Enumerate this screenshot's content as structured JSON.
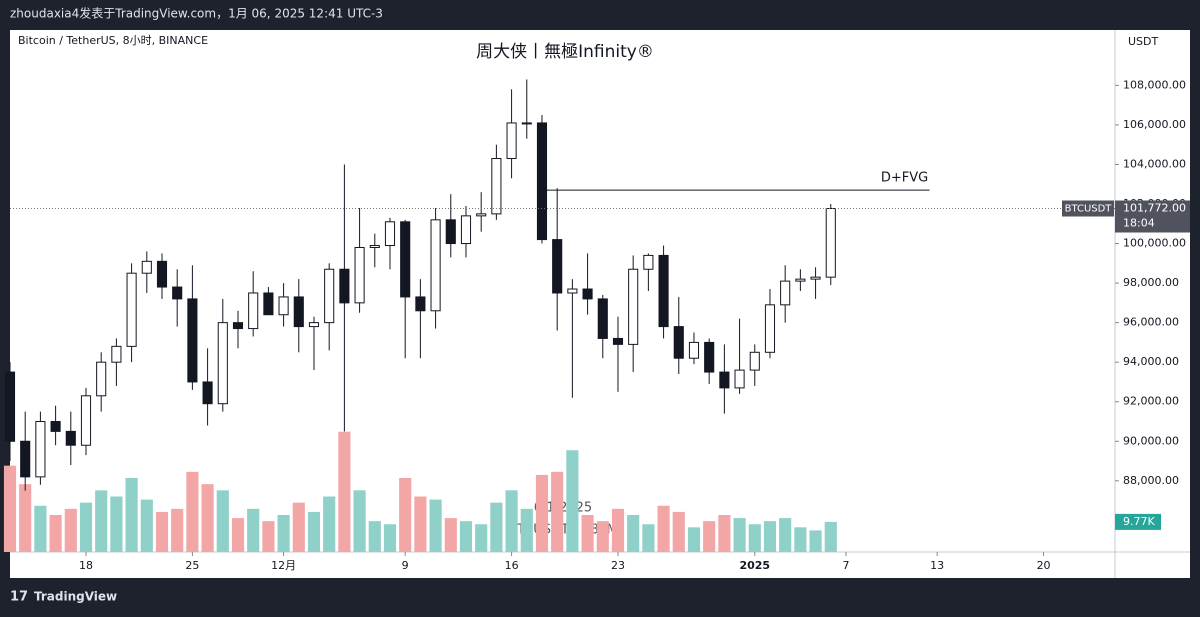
{
  "header": {
    "author_line": "zhoudaxia4发表于TradingView.com，1月 06, 2025 12:41 UTC-3",
    "footer": "TradingView"
  },
  "chart_data": {
    "type": "candlestick",
    "symbol_line": "Bitcoin / TetherUS, 8小时, BINANCE",
    "title": "周大侠丨無極Infinity®",
    "currency": "USDT",
    "watermark_date": "6/1/2025",
    "watermark_symbol": "BTCUSDT丨480M",
    "annotation": {
      "text": "D+FVG",
      "value": 102700,
      "from": 35,
      "to": 60.5
    },
    "last_symbol": "BTCUSDT",
    "close_label": "101,772.00",
    "countdown": "18:04",
    "volume_label": "9.77K",
    "up_color": "#ffffff",
    "down_color": "#131722",
    "volume_up_color": "#8fd0c8",
    "volume_down_color": "#f3a6a6",
    "open": [
      93500,
      90000,
      88200,
      91000,
      90500,
      89800,
      92300,
      94000,
      94800,
      98500,
      99100,
      97800,
      97200,
      93000,
      91900,
      96000,
      95700,
      97500,
      96400,
      97300,
      95800,
      96000,
      98700,
      97000,
      99800,
      99900,
      101100,
      97300,
      96600,
      101200,
      100000,
      101400,
      101500,
      104300,
      106100,
      106100,
      100200,
      97500,
      97700,
      97200,
      95200,
      94900,
      98700,
      99400,
      95800,
      94200,
      95000,
      93500,
      92700,
      93600,
      94500,
      96900,
      98100,
      98200,
      98300
    ],
    "high": [
      94000,
      91500,
      91500,
      91800,
      91500,
      92700,
      94500,
      95200,
      99000,
      99600,
      99500,
      98700,
      98900,
      94700,
      97200,
      96600,
      98600,
      97800,
      98000,
      98200,
      96300,
      99000,
      104000,
      101800,
      100500,
      101300,
      101200,
      98200,
      101800,
      102500,
      101900,
      102600,
      105000,
      107800,
      108300,
      106500,
      102800,
      98200,
      99500,
      97400,
      96300,
      99400,
      99500,
      99900,
      97300,
      95500,
      95200,
      94900,
      96200,
      94900,
      97700,
      98900,
      98700,
      98800,
      102000
    ],
    "low": [
      89000,
      87500,
      87800,
      89800,
      88800,
      89300,
      91500,
      92800,
      94000,
      97500,
      97200,
      95800,
      92600,
      90800,
      91500,
      94700,
      95300,
      96500,
      95800,
      94500,
      93600,
      94600,
      90500,
      96500,
      98800,
      98700,
      94200,
      94200,
      95700,
      99300,
      99300,
      100600,
      101200,
      103300,
      105300,
      100000,
      95600,
      92200,
      96400,
      94200,
      92500,
      93500,
      97600,
      95200,
      93400,
      93900,
      92900,
      91400,
      92400,
      92800,
      94200,
      96000,
      97600,
      97200,
      97900
    ],
    "close": [
      90000,
      88200,
      91000,
      90500,
      89800,
      92300,
      94000,
      94800,
      98500,
      99100,
      97800,
      97200,
      93000,
      91900,
      96000,
      95700,
      97500,
      96400,
      97300,
      95800,
      96000,
      98700,
      97000,
      99800,
      99900,
      101100,
      97300,
      96600,
      101200,
      100000,
      101400,
      101500,
      104300,
      106100,
      106100,
      100200,
      97500,
      97700,
      97200,
      95200,
      94900,
      98700,
      99400,
      95800,
      94200,
      95000,
      93500,
      92700,
      93600,
      94500,
      96900,
      98100,
      98200,
      98300,
      101772
    ],
    "volume": [
      28,
      22,
      15,
      12,
      14,
      16,
      20,
      18,
      24,
      17,
      13,
      14,
      26,
      22,
      20,
      11,
      14,
      10,
      12,
      16,
      13,
      18,
      39,
      20,
      10,
      9,
      24,
      18,
      17,
      11,
      10,
      9,
      16,
      20,
      14,
      25,
      26,
      33,
      12,
      10,
      14,
      12,
      9,
      15,
      13,
      8,
      10,
      12,
      11,
      9,
      10,
      11,
      8,
      7,
      9.77
    ],
    "xlim": [
      0,
      72.7
    ],
    "ylim": [
      84400,
      110800
    ],
    "volume_lim": [
      0,
      60
    ],
    "xticks": [
      {
        "value": 5,
        "label": "18"
      },
      {
        "value": 12,
        "label": "25"
      },
      {
        "value": 18,
        "label": "12月"
      },
      {
        "value": 26,
        "label": "9"
      },
      {
        "value": 33,
        "label": "16"
      },
      {
        "value": 40,
        "label": "23"
      },
      {
        "value": 49,
        "label": "2025"
      },
      {
        "value": 55,
        "label": "7"
      },
      {
        "value": 61,
        "label": "13"
      },
      {
        "value": 68,
        "label": "20"
      }
    ],
    "yticks": [
      {
        "value": 88000,
        "label": "88,000.00"
      },
      {
        "value": 90000,
        "label": "90,000.00"
      },
      {
        "value": 92000,
        "label": "92,000.00"
      },
      {
        "value": 94000,
        "label": "94,000.00"
      },
      {
        "value": 96000,
        "label": "96,000.00"
      },
      {
        "value": 98000,
        "label": "98,000.00"
      },
      {
        "value": 100000,
        "label": "100,000.00"
      },
      {
        "value": 102000,
        "label": "102,000.00"
      },
      {
        "value": 104000,
        "label": "104,000.00"
      },
      {
        "value": 106000,
        "label": "106,000.00"
      },
      {
        "value": 108000,
        "label": "108,000.00"
      }
    ]
  }
}
